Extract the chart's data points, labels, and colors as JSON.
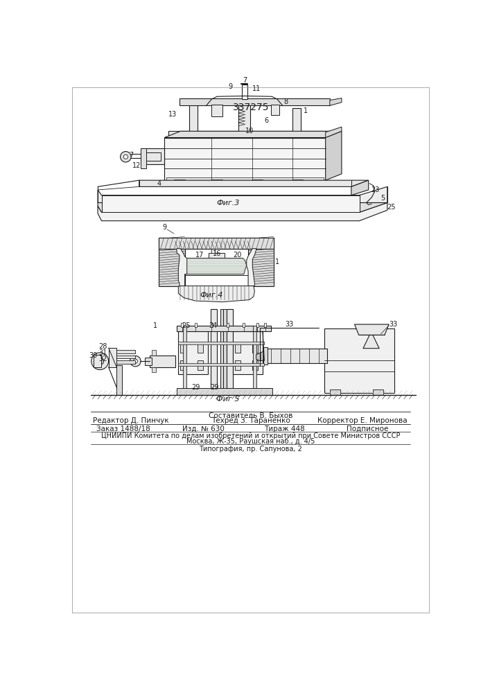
{
  "title": "337275",
  "fig3_label": "Фиг.3",
  "fig4_label": "Фиг.4",
  "fig5_label": "Фиг 5",
  "footer_composer": "Составитель В. Быхов",
  "footer_editor": "Редактор Д. Пинчук",
  "footer_tech": "Техред З. Тараненко",
  "footer_corrector": "Корректор Е. Миронова",
  "footer_order": "Заказ 1488/18",
  "footer_izd": "Изд. № 630",
  "footer_tirazh": "Тираж 448",
  "footer_podp": "Подписное",
  "footer_tsniipi": "ЦНИИПИ Комитета по делам изобретений и открытий при Совете Министров СССР",
  "footer_moscow": "Москва, Ж-35, Раушская наб., д. 4/5",
  "footer_typo": "Типография, пр. Сапунова, 2",
  "bg": "#ffffff",
  "lc": "#1a1a1a"
}
